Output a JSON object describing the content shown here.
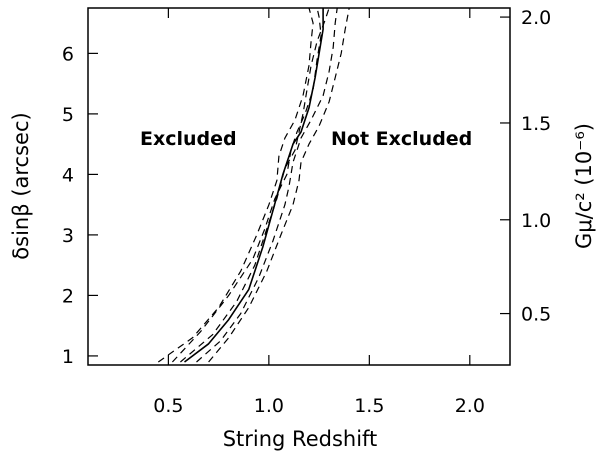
{
  "chart_data": {
    "type": "line",
    "title": "",
    "xlabel": "String Redshift",
    "ylabel": "δsinβ (arcsec)",
    "ylabel_right": "Gμ/c² (10⁻⁶)",
    "xlim": [
      0.1,
      2.2
    ],
    "ylim": [
      0.85,
      6.75
    ],
    "ylim_right_ticks": [
      {
        "label": "0.5",
        "y": 1.7
      },
      {
        "label": "1.0",
        "y": 3.25
      },
      {
        "label": "1.5",
        "y": 4.85
      },
      {
        "label": "2.0",
        "y": 6.6
      }
    ],
    "x_ticks": [
      "0.5",
      "1.0",
      "1.5",
      "2.0"
    ],
    "y_ticks": [
      "1",
      "2",
      "3",
      "4",
      "5",
      "6"
    ],
    "annotations": {
      "left": "Excluded",
      "right": "Not Excluded"
    },
    "series": [
      {
        "style": "solid",
        "x": [
          0.58,
          0.7,
          0.8,
          0.9,
          0.97,
          1.02,
          1.07,
          1.1,
          1.12,
          1.16,
          1.2,
          1.23,
          1.25,
          1.27,
          1.27
        ],
        "y": [
          0.9,
          1.2,
          1.6,
          2.1,
          2.8,
          3.4,
          4.0,
          4.3,
          4.5,
          4.7,
          5.1,
          5.6,
          6.0,
          6.4,
          6.75
        ]
      },
      {
        "style": "dashed",
        "x": [
          0.45,
          0.62,
          0.75,
          0.86,
          0.94,
          1.0,
          1.04,
          1.05,
          1.08,
          1.13,
          1.17,
          1.2,
          1.21,
          1.22,
          1.2
        ],
        "y": [
          0.9,
          1.3,
          1.8,
          2.4,
          3.0,
          3.5,
          3.9,
          4.3,
          4.6,
          4.9,
          5.3,
          5.8,
          6.2,
          6.5,
          6.75
        ]
      },
      {
        "style": "dashed",
        "x": [
          0.7,
          0.8,
          0.9,
          0.99,
          1.06,
          1.12,
          1.15,
          1.16,
          1.2,
          1.25,
          1.3,
          1.33,
          1.36,
          1.38,
          1.4
        ],
        "y": [
          0.9,
          1.3,
          1.8,
          2.4,
          3.0,
          3.5,
          3.9,
          4.2,
          4.5,
          4.8,
          5.2,
          5.6,
          6.0,
          6.4,
          6.75
        ]
      },
      {
        "style": "dashed",
        "x": [
          0.52,
          0.66,
          0.8,
          0.92,
          0.98,
          1.03,
          1.09,
          1.11,
          1.14,
          1.18,
          1.22,
          1.24,
          1.26,
          1.25,
          1.24
        ],
        "y": [
          0.9,
          1.4,
          2.0,
          2.6,
          3.1,
          3.6,
          4.0,
          4.4,
          4.7,
          5.0,
          5.4,
          5.9,
          6.3,
          6.6,
          6.75
        ]
      },
      {
        "style": "dashed",
        "x": [
          0.64,
          0.76,
          0.86,
          0.95,
          1.02,
          1.08,
          1.1,
          1.12,
          1.16,
          1.21,
          1.27,
          1.3,
          1.32,
          1.33,
          1.34
        ],
        "y": [
          0.9,
          1.25,
          1.7,
          2.3,
          2.9,
          3.5,
          3.8,
          4.2,
          4.6,
          4.9,
          5.3,
          5.7,
          6.1,
          6.5,
          6.75
        ]
      },
      {
        "style": "dashed",
        "x": [
          0.56,
          0.72,
          0.84,
          0.93,
          0.99,
          1.04,
          1.08,
          1.13,
          1.15,
          1.17,
          1.19,
          1.21,
          1.24,
          1.28,
          1.3
        ],
        "y": [
          0.9,
          1.35,
          1.9,
          2.5,
          3.1,
          3.6,
          4.1,
          4.4,
          4.7,
          5.0,
          5.4,
          5.8,
          6.2,
          6.55,
          6.75
        ]
      }
    ]
  }
}
